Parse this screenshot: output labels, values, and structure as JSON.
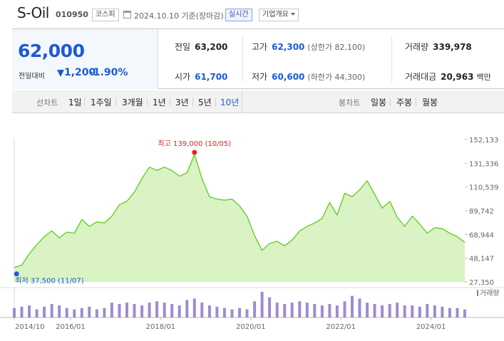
{
  "header": {
    "name": "S-Oil",
    "code": "010950",
    "market": "코스피",
    "date_text": "2024.10.10 기준(장마감)",
    "realtime_label": "실시간",
    "corp_info_label": "기업개요"
  },
  "quote": {
    "price": "62,000",
    "change_label": "전일대비",
    "change": "1,200",
    "change_pct": "-1.90%",
    "prev_close_label": "전일",
    "prev_close": "63,200",
    "open_label": "시가",
    "open": "61,700",
    "high_label": "고가",
    "high": "62,300",
    "upper_limit": "(상한가 82,100)",
    "low_label": "저가",
    "low": "60,600",
    "lower_limit": "(하한가 44,300)",
    "volume_label": "거래량",
    "volume": "339,978",
    "value_label": "거래대금",
    "value": "20,963",
    "value_unit": "백만"
  },
  "line_tabs": {
    "label": "선차트",
    "items": [
      "1일",
      "1주일",
      "3개월",
      "1년",
      "3년",
      "5년",
      "10년"
    ],
    "active": "10년"
  },
  "candle_tabs": {
    "label": "봉차트",
    "items": [
      "일봉",
      "주봉",
      "월봉"
    ]
  },
  "colors": {
    "accent": "#1d5bd4",
    "line": "#5fcc1c",
    "area": "#d9f3c4",
    "volume": "#8c78c9",
    "high_marker": "#e8231e",
    "low_marker": "#1d5bd4"
  },
  "chart_data": {
    "type": "area",
    "y_ticks": [
      "152,133",
      "131,336",
      "110,539",
      "89,742",
      "68,944",
      "48,147",
      "27,350"
    ],
    "ylim": [
      27350,
      152133
    ],
    "x_ticks": [
      "2014/10",
      "2016/01",
      "2018/01",
      "2020/01",
      "2022/01",
      "2024/01"
    ],
    "x_tick_dates": [
      "2014-10",
      "2016-01",
      "2018-01",
      "2020-01",
      "2022-01",
      "2024-01"
    ],
    "x_range": [
      "2014-10",
      "2024-10"
    ],
    "high_annotation": "최고 139,000 (10/05)",
    "high": {
      "date": "2018-10",
      "value": 139000
    },
    "low_annotation": "최저 37,500 (11/07)",
    "low": {
      "date": "2014-11",
      "value": 37500
    },
    "volume_label": "거래량",
    "series": [
      {
        "name": "",
        "dates": [
          "2014-10",
          "2014-12",
          "2015-02",
          "2015-04",
          "2015-06",
          "2015-08",
          "2015-10",
          "2015-12",
          "2016-02",
          "2016-04",
          "2016-06",
          "2016-08",
          "2016-10",
          "2016-12",
          "2017-02",
          "2017-04",
          "2017-06",
          "2017-08",
          "2017-10",
          "2017-12",
          "2018-02",
          "2018-04",
          "2018-06",
          "2018-08",
          "2018-10",
          "2018-12",
          "2019-02",
          "2019-04",
          "2019-06",
          "2019-08",
          "2019-10",
          "2019-12",
          "2020-02",
          "2020-04",
          "2020-06",
          "2020-08",
          "2020-10",
          "2020-12",
          "2021-02",
          "2021-04",
          "2021-06",
          "2021-08",
          "2021-10",
          "2021-12",
          "2022-02",
          "2022-04",
          "2022-06",
          "2022-08",
          "2022-10",
          "2022-12",
          "2023-02",
          "2023-04",
          "2023-06",
          "2023-08",
          "2023-10",
          "2023-12",
          "2024-02",
          "2024-04",
          "2024-06",
          "2024-08",
          "2024-10"
        ],
        "values": [
          40000,
          42000,
          52000,
          60000,
          67000,
          72000,
          66000,
          71000,
          70000,
          82000,
          76000,
          80000,
          79000,
          85000,
          95000,
          98000,
          106000,
          118000,
          128000,
          125000,
          128000,
          125000,
          120000,
          123000,
          139000,
          118000,
          102000,
          100000,
          99000,
          100000,
          94000,
          85000,
          68000,
          55000,
          61000,
          63000,
          59000,
          64000,
          72000,
          76000,
          79000,
          83000,
          97000,
          86000,
          105000,
          102000,
          108000,
          116000,
          104000,
          92000,
          98000,
          84000,
          76000,
          85000,
          78000,
          70000,
          75000,
          74000,
          70000,
          67000,
          62000
        ]
      }
    ],
    "volume_series": {
      "name": "거래량",
      "relative_values": [
        0.35,
        0.4,
        0.45,
        0.3,
        0.4,
        0.5,
        0.45,
        0.35,
        0.3,
        0.35,
        0.4,
        0.3,
        0.35,
        0.55,
        0.5,
        0.55,
        0.5,
        0.45,
        0.55,
        0.6,
        0.55,
        0.5,
        0.45,
        0.65,
        0.7,
        0.55,
        0.45,
        0.4,
        0.35,
        0.3,
        0.35,
        0.3,
        0.6,
        0.95,
        0.75,
        0.55,
        0.5,
        0.55,
        0.6,
        0.55,
        0.5,
        0.45,
        0.5,
        0.45,
        0.6,
        0.8,
        0.7,
        0.55,
        0.5,
        0.45,
        0.5,
        0.55,
        0.45,
        0.45,
        0.4,
        0.5,
        0.45,
        0.4,
        0.35,
        0.35,
        0.3
      ]
    }
  }
}
